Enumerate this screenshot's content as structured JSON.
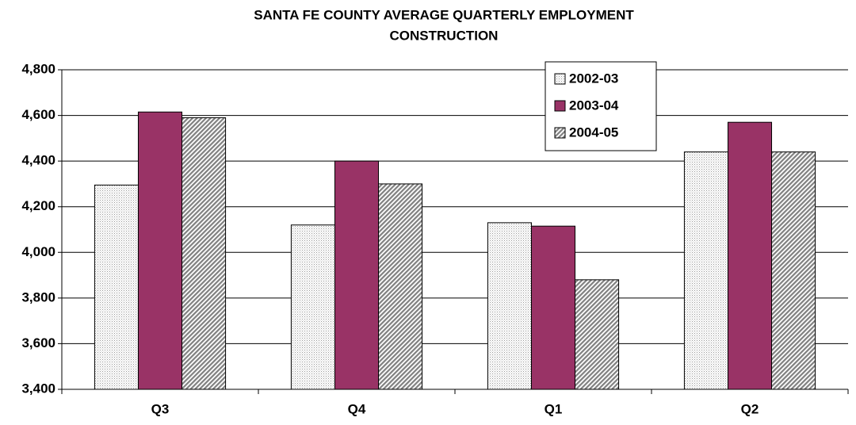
{
  "chart_data": {
    "type": "bar",
    "title": "SANTA FE COUNTY AVERAGE QUARTERLY EMPLOYMENT",
    "subtitle": "CONSTRUCTION",
    "categories": [
      "Q3",
      "Q4",
      "Q1",
      "Q2"
    ],
    "series": [
      {
        "name": "2002-03",
        "color": "#e6e6e6",
        "pattern": "dots",
        "values": [
          4295,
          4120,
          4130,
          4440
        ]
      },
      {
        "name": "2003-04",
        "color": "#993366",
        "pattern": "solid",
        "values": [
          4615,
          4400,
          4115,
          4570
        ]
      },
      {
        "name": "2004-05",
        "color": "#808080",
        "pattern": "hatch",
        "values": [
          4590,
          4300,
          3880,
          4440
        ]
      }
    ],
    "ylim": [
      3400,
      4800
    ],
    "yticks": [
      {
        "value": 3400,
        "label": "3,400"
      },
      {
        "value": 3600,
        "label": "3,600"
      },
      {
        "value": 3800,
        "label": "3,800"
      },
      {
        "value": 4000,
        "label": "4,000"
      },
      {
        "value": 4200,
        "label": "4,200"
      },
      {
        "value": 4400,
        "label": "4,400"
      },
      {
        "value": 4600,
        "label": "4,600"
      },
      {
        "value": 4800,
        "label": "4,800"
      }
    ],
    "grid": true,
    "legend": "top-right"
  }
}
